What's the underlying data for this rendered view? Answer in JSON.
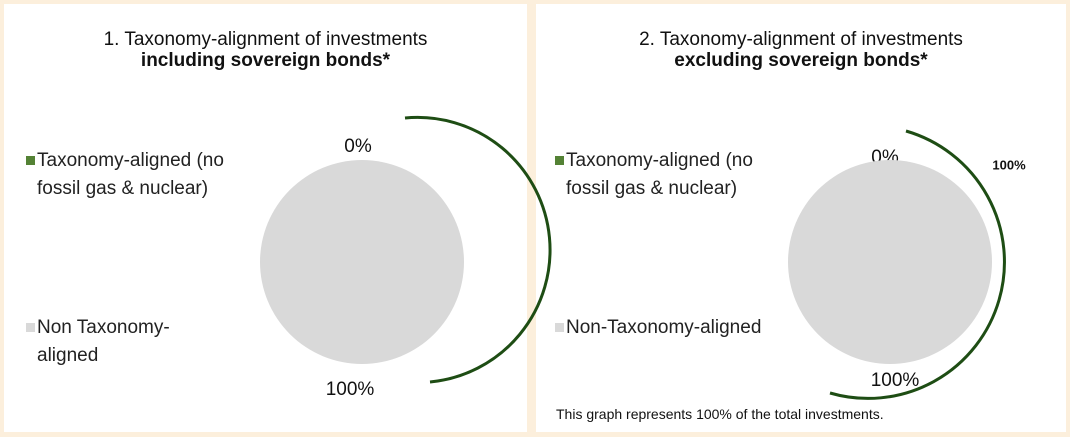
{
  "chart_data": [
    {
      "type": "pie",
      "title": "1. Taxonomy-alignment of investments",
      "subtitle": "including sovereign bonds*",
      "categories": [
        "Taxonomy-aligned (no fossil gas & nuclear)",
        "Non Taxonomy-aligned"
      ],
      "values": [
        0,
        100
      ],
      "value_labels": [
        "0%",
        "100%"
      ],
      "colors": [
        "#548235",
        "#d9d9d9"
      ]
    },
    {
      "type": "pie",
      "title": "2. Taxonomy-alignment of investments",
      "subtitle": "excluding sovereign bonds*",
      "categories": [
        "Taxonomy-aligned (no fossil gas & nuclear)",
        "Non-Taxonomy-aligned"
      ],
      "values": [
        0,
        100
      ],
      "value_labels": [
        "0%",
        "100%"
      ],
      "colors": [
        "#548235",
        "#d9d9d9"
      ],
      "annotation": "100%",
      "note": "This graph represents 100% of the total investments."
    }
  ]
}
